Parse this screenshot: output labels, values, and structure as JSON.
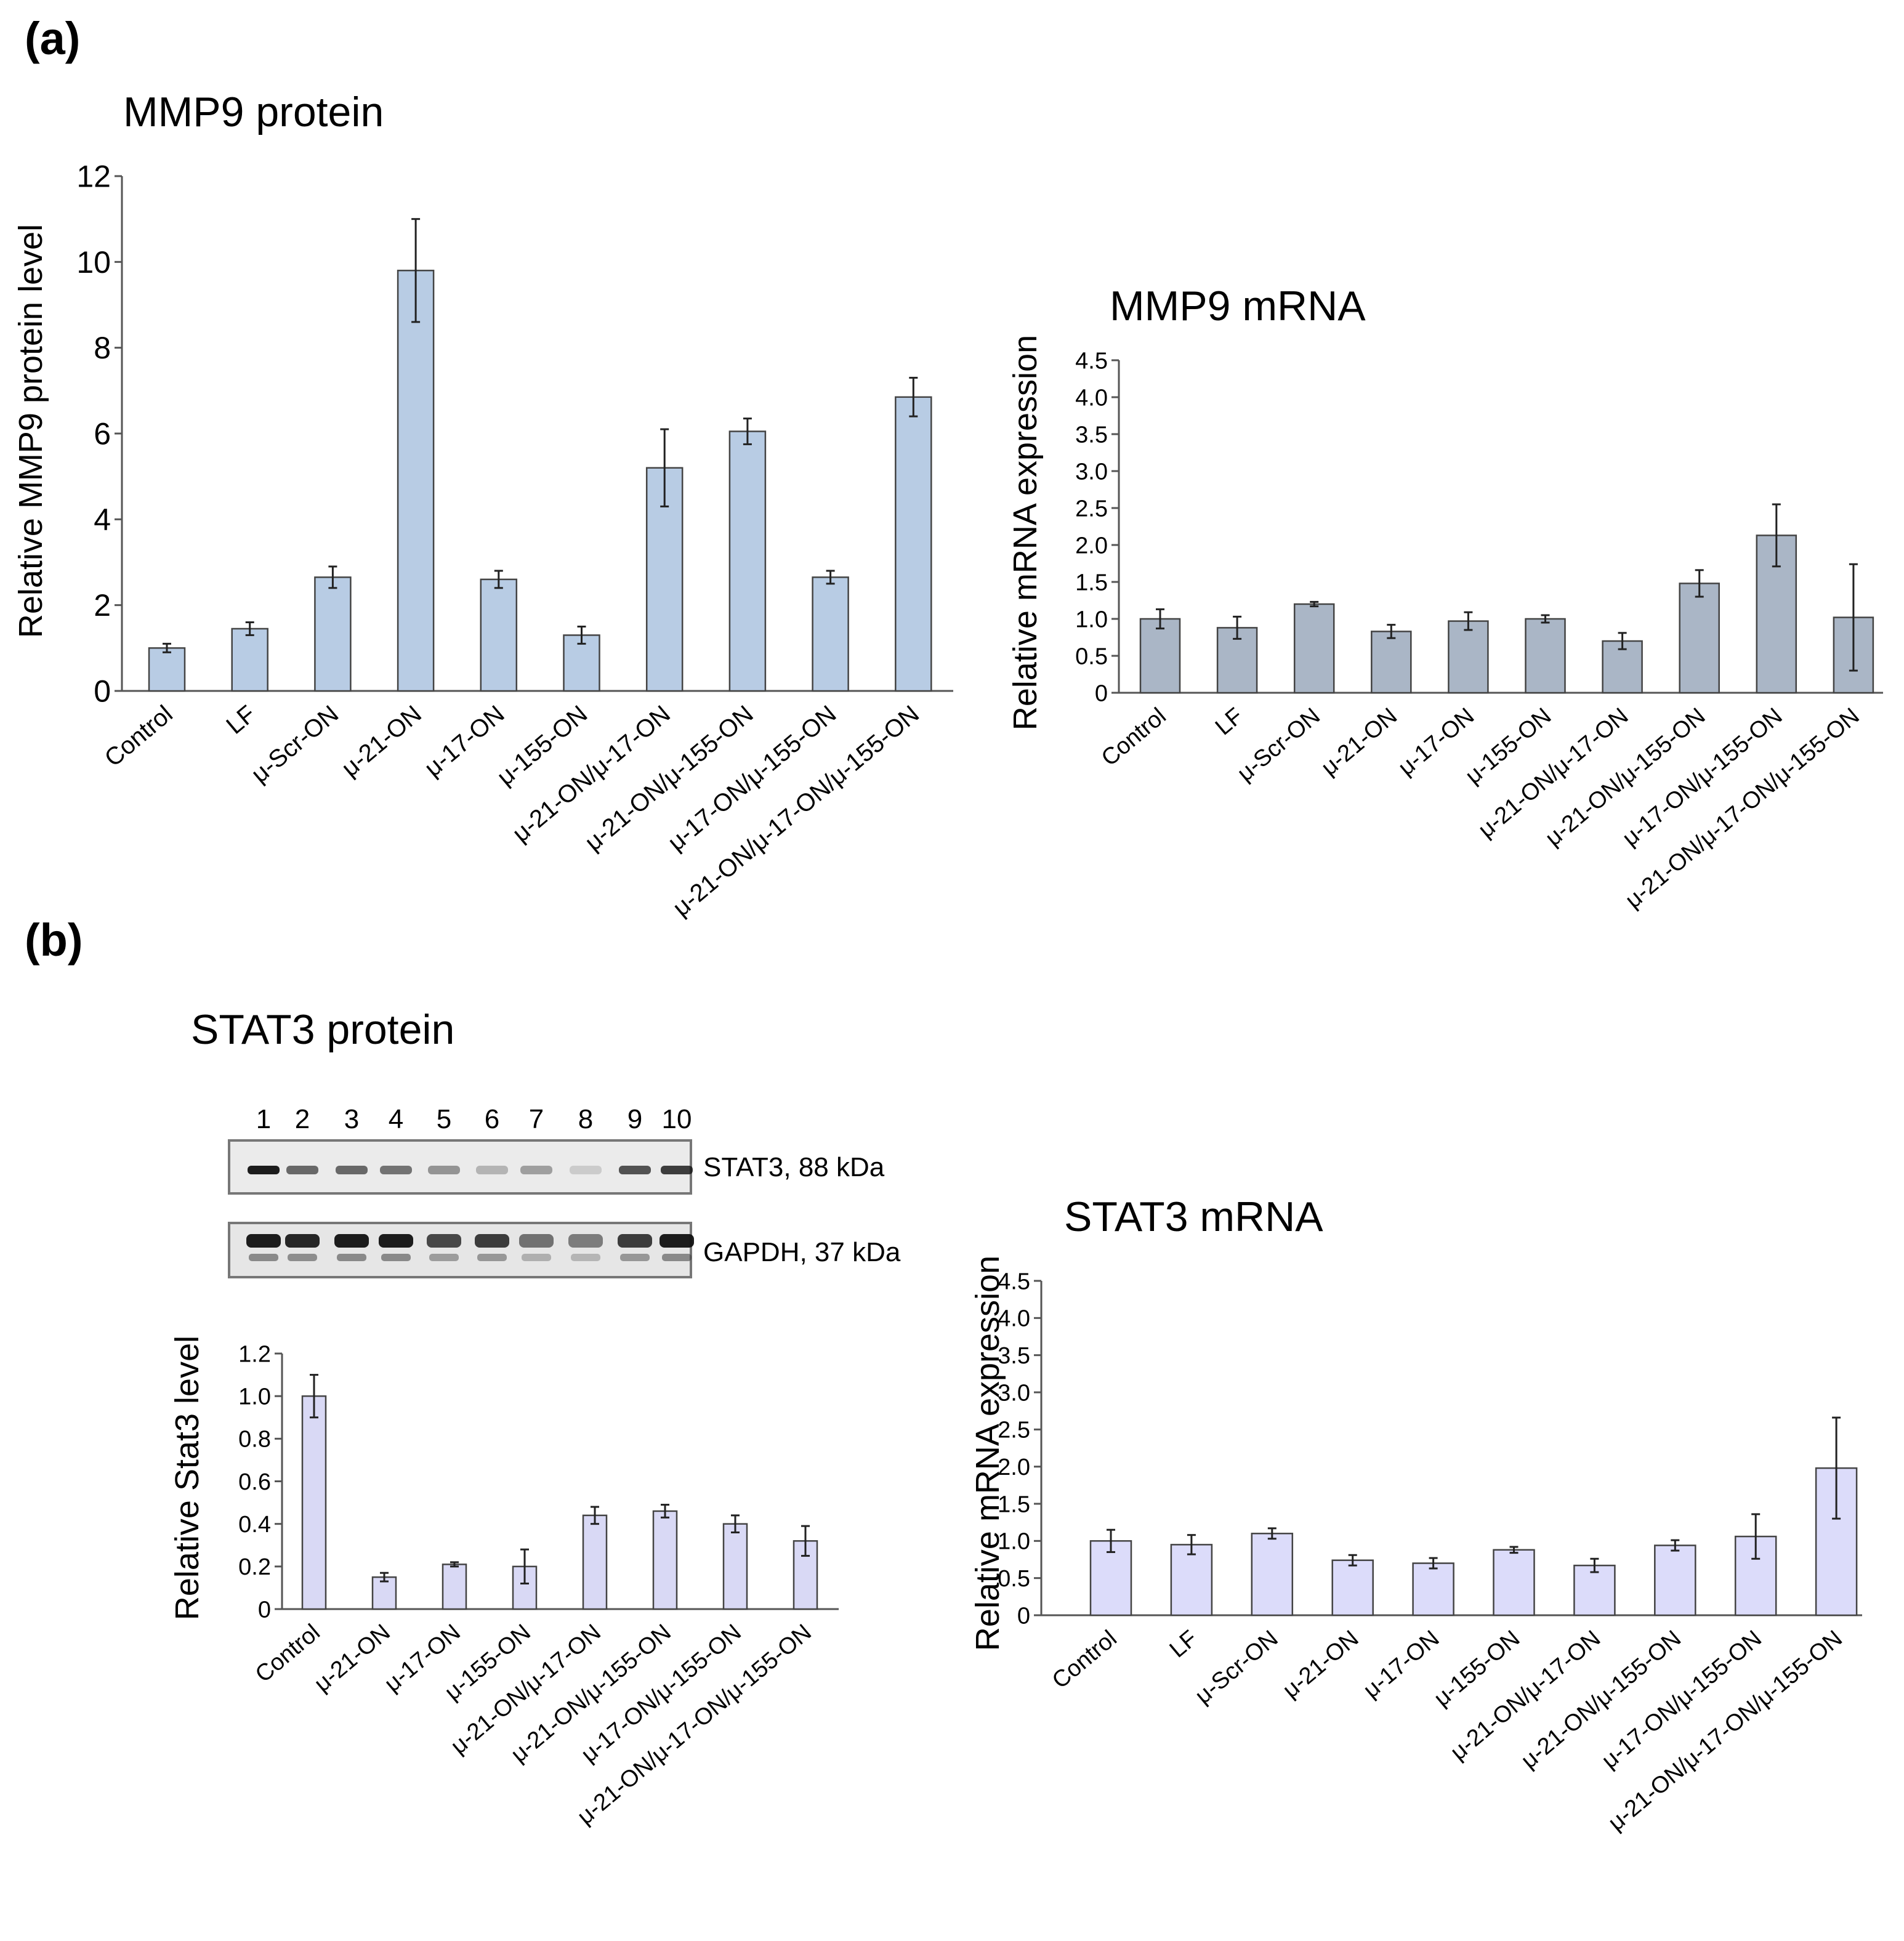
{
  "panels": {
    "a": "(a)",
    "b": "(b)"
  },
  "blot": {
    "lane_numbers": [
      "1",
      "2",
      "3",
      "4",
      "5",
      "6",
      "7",
      "8",
      "9",
      "10"
    ],
    "stat3_label": "STAT3, 88 kDa",
    "gapdh_label": "GAPDH, 37 kDa",
    "stat3_intensity": [
      0.95,
      0.6,
      0.6,
      0.55,
      0.4,
      0.25,
      0.35,
      0.15,
      0.7,
      0.8
    ],
    "gapdh_intensity": [
      0.95,
      0.9,
      0.95,
      0.95,
      0.75,
      0.8,
      0.55,
      0.5,
      0.8,
      0.95
    ]
  },
  "chart_data": [
    {
      "id": "mmp9-protein",
      "type": "bar",
      "title": "MMP9 protein",
      "xlabel": "",
      "ylabel": "Relative MMP9 protein level",
      "ylim": [
        0,
        12
      ],
      "yticks": [
        "0",
        "2",
        "4",
        "6",
        "8",
        "10",
        "12"
      ],
      "categories": [
        "Control",
        "LF",
        "μ-Scr-ON",
        "μ-21-ON",
        "μ-17-ON",
        "μ-155-ON",
        "μ-21-ON/μ-17-ON",
        "μ-21-ON/μ-155-ON",
        "μ-17-ON/μ-155-ON",
        "μ-21-ON/μ-17-ON/μ-155-ON"
      ],
      "values": [
        1.0,
        1.45,
        2.65,
        9.8,
        2.6,
        1.3,
        5.2,
        6.05,
        2.65,
        6.85
      ],
      "errors": [
        0.1,
        0.15,
        0.25,
        1.2,
        0.2,
        0.2,
        0.9,
        0.3,
        0.15,
        0.45
      ],
      "bar_color": "#b8cce4"
    },
    {
      "id": "mmp9-mrna",
      "type": "bar",
      "title": "MMP9 mRNA",
      "xlabel": "",
      "ylabel": "Relative mRNA expression",
      "ylim": [
        0,
        4.5
      ],
      "yticks": [
        "0",
        "0.5",
        "1.0",
        "1.5",
        "2.0",
        "2.5",
        "3.0",
        "3.5",
        "4.0",
        "4.5"
      ],
      "categories": [
        "Control",
        "LF",
        "μ-Scr-ON",
        "μ-21-ON",
        "μ-17-ON",
        "μ-155-ON",
        "μ-21-ON/μ-17-ON",
        "μ-21-ON/μ-155-ON",
        "μ-17-ON/μ-155-ON",
        "μ-21-ON/μ-17-ON/μ-155-ON"
      ],
      "values": [
        1.0,
        0.88,
        1.2,
        0.83,
        0.97,
        1.0,
        0.7,
        1.48,
        2.13,
        1.02
      ],
      "errors": [
        0.13,
        0.15,
        0.03,
        0.09,
        0.12,
        0.05,
        0.11,
        0.18,
        0.42,
        0.72
      ],
      "bar_color": "#aab6c6"
    },
    {
      "id": "stat3-protein",
      "type": "bar",
      "title": "STAT3 protein",
      "xlabel": "",
      "ylabel": "Relative Stat3 level",
      "ylim": [
        0,
        1.2
      ],
      "yticks": [
        "0",
        "0.2",
        "0.4",
        "0.6",
        "0.8",
        "1.0",
        "1.2"
      ],
      "categories": [
        "Control",
        "μ-21-ON",
        "μ-17-ON",
        "μ-155-ON",
        "μ-21-ON/μ-17-ON",
        "μ-21-ON/μ-155-ON",
        "μ-17-ON/μ-155-ON",
        "μ-21-ON/μ-17-ON/μ-155-ON"
      ],
      "values": [
        1.0,
        0.15,
        0.21,
        0.2,
        0.44,
        0.46,
        0.4,
        0.32
      ],
      "errors": [
        0.1,
        0.02,
        0.01,
        0.08,
        0.04,
        0.03,
        0.04,
        0.07
      ],
      "bar_color": "#d9d9f5"
    },
    {
      "id": "stat3-mrna",
      "type": "bar",
      "title": "STAT3 mRNA",
      "xlabel": "",
      "ylabel": "Relative mRNA expression",
      "ylim": [
        0,
        4.5
      ],
      "yticks": [
        "0",
        "0.5",
        "1.0",
        "1.5",
        "2.0",
        "2.5",
        "3.0",
        "3.5",
        "4.0",
        "4.5"
      ],
      "categories": [
        "Control",
        "LF",
        "μ-Scr-ON",
        "μ-21-ON",
        "μ-17-ON",
        "μ-155-ON",
        "μ-21-ON/μ-17-ON",
        "μ-21-ON/μ-155-ON",
        "μ-17-ON/μ-155-ON",
        "μ-21-ON/μ-17-ON/μ-155-ON"
      ],
      "values": [
        1.0,
        0.95,
        1.1,
        0.74,
        0.7,
        0.88,
        0.67,
        0.94,
        1.06,
        1.98
      ],
      "errors": [
        0.15,
        0.13,
        0.07,
        0.07,
        0.07,
        0.04,
        0.09,
        0.07,
        0.3,
        0.68
      ],
      "bar_color": "#dcdcfa"
    }
  ]
}
